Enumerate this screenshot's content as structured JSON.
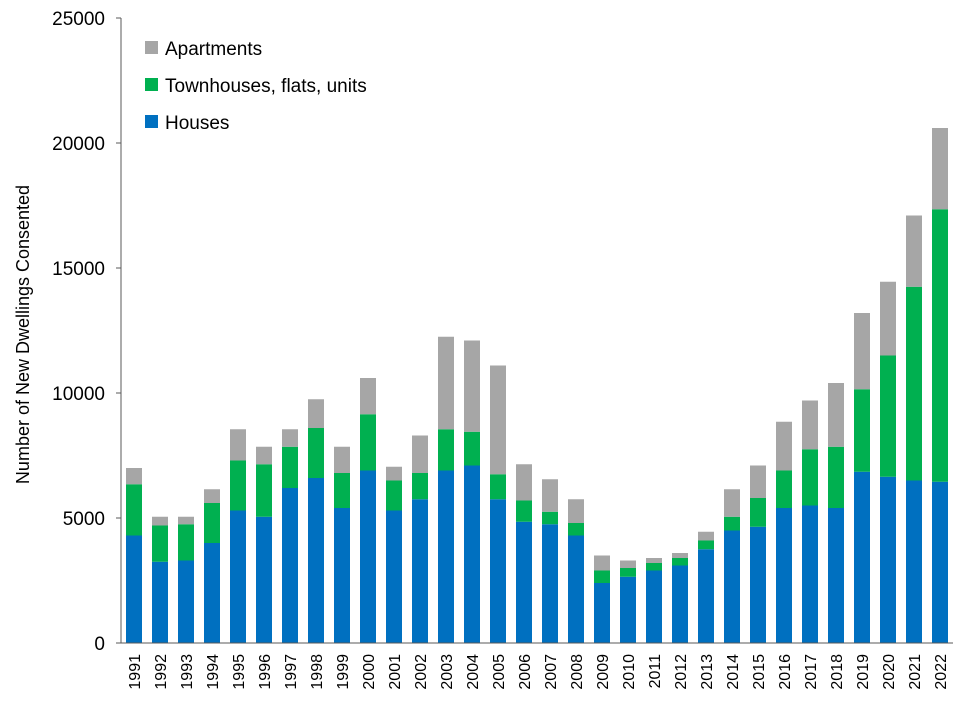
{
  "chart_data": {
    "type": "bar",
    "stacked": true,
    "title": "",
    "xlabel": "",
    "ylabel": "Number of New Dwellings Consented",
    "ylim": [
      0,
      25000
    ],
    "yticks": [
      "0",
      "5000",
      "10000",
      "15000",
      "20000",
      "25000"
    ],
    "grid": false,
    "legend_position": "top-left",
    "categories": [
      "1991",
      "1992",
      "1993",
      "1994",
      "1995",
      "1996",
      "1997",
      "1998",
      "1999",
      "2000",
      "2001",
      "2002",
      "2003",
      "2004",
      "2005",
      "2006",
      "2007",
      "2008",
      "2009",
      "2010",
      "2011",
      "2012",
      "2013",
      "2014",
      "2015",
      "2016",
      "2017",
      "2018",
      "2019",
      "2020",
      "2021",
      "2022"
    ],
    "series": [
      {
        "name": "Houses",
        "color": "#0070C0",
        "values": [
          4300,
          3250,
          3300,
          4000,
          5300,
          5050,
          6200,
          6600,
          5400,
          6900,
          5300,
          5750,
          6900,
          7100,
          5750,
          4850,
          4750,
          4300,
          2400,
          2650,
          2900,
          3100,
          3750,
          4500,
          4650,
          5400,
          5500,
          5400,
          6850,
          6650,
          6500,
          6450
        ]
      },
      {
        "name": "Townhouses, flats, units",
        "color": "#00B050",
        "values": [
          2050,
          1450,
          1450,
          1600,
          2000,
          2100,
          1650,
          2000,
          1400,
          2250,
          1200,
          1050,
          1650,
          1350,
          1000,
          850,
          500,
          500,
          500,
          350,
          300,
          300,
          350,
          550,
          1150,
          1500,
          2250,
          2450,
          3300,
          4850,
          7750,
          10900
        ]
      },
      {
        "name": "Apartments",
        "color": "#A6A6A6",
        "values": [
          650,
          350,
          300,
          550,
          1250,
          700,
          700,
          1150,
          1050,
          1450,
          550,
          1500,
          3700,
          3650,
          4350,
          1450,
          1300,
          950,
          600,
          300,
          200,
          200,
          350,
          1100,
          1300,
          1950,
          1950,
          2550,
          3050,
          2950,
          2850,
          3250
        ]
      }
    ],
    "legend": [
      {
        "label": "Apartments",
        "color": "#A6A6A6"
      },
      {
        "label": "Townhouses, flats, units",
        "color": "#00B050"
      },
      {
        "label": "Houses",
        "color": "#0070C0"
      }
    ]
  }
}
